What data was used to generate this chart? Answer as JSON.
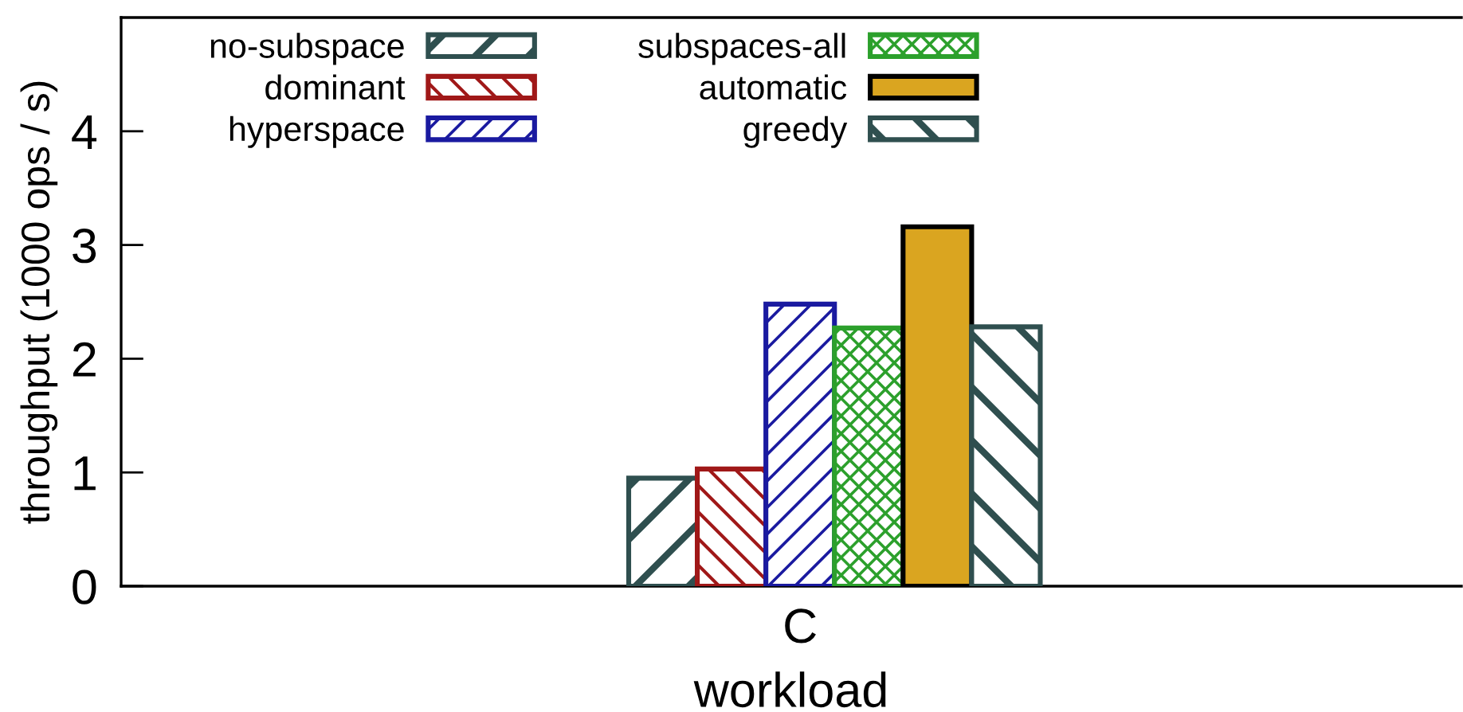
{
  "chart_data": {
    "type": "bar",
    "xlabel": "workload",
    "ylabel": "throughput (1000 ops / s)",
    "categories": [
      "C"
    ],
    "series": [
      {
        "name": "no-subspace",
        "color": "#2f4f4f",
        "values": [
          0.95
        ]
      },
      {
        "name": "dominant",
        "color": "#a01818",
        "values": [
          1.03
        ]
      },
      {
        "name": "hyperspace",
        "color": "#1a1aa0",
        "values": [
          2.48
        ]
      },
      {
        "name": "subspaces-all",
        "color": "#2ca02c",
        "values": [
          2.27
        ]
      },
      {
        "name": "automatic",
        "color": "#daa520",
        "values": [
          3.16
        ]
      },
      {
        "name": "greedy",
        "color": "#2f4f4f",
        "values": [
          2.28
        ]
      }
    ],
    "ylim": [
      0,
      5
    ],
    "yticks": [
      0,
      1,
      2,
      3,
      4
    ],
    "legend": "top left"
  }
}
